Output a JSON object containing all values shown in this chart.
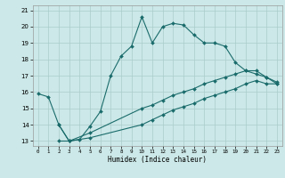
{
  "xlabel": "Humidex (Indice chaleur)",
  "bg_color": "#cce8e8",
  "grid_color": "#aacccc",
  "line_color": "#1a6b6b",
  "xlim": [
    -0.5,
    23.5
  ],
  "ylim": [
    12.7,
    21.3
  ],
  "xticks": [
    0,
    1,
    2,
    3,
    4,
    5,
    6,
    7,
    8,
    9,
    10,
    11,
    12,
    13,
    14,
    15,
    16,
    17,
    18,
    19,
    20,
    21,
    22,
    23
  ],
  "yticks": [
    13,
    14,
    15,
    16,
    17,
    18,
    19,
    20,
    21
  ],
  "line1_x": [
    0,
    1,
    2,
    3,
    4,
    5,
    6,
    7,
    8,
    9,
    10,
    11,
    12,
    13,
    14,
    15,
    16,
    17,
    18,
    19,
    20,
    21,
    22,
    23
  ],
  "line1_y": [
    15.9,
    15.7,
    14.0,
    13.0,
    13.1,
    13.9,
    14.8,
    17.0,
    18.2,
    18.8,
    20.6,
    19.0,
    20.0,
    20.2,
    20.1,
    19.5,
    19.0,
    19.0,
    18.8,
    17.8,
    17.3,
    17.1,
    16.9,
    16.5
  ],
  "line2_x": [
    2,
    3,
    5,
    10,
    11,
    12,
    13,
    14,
    15,
    16,
    17,
    18,
    19,
    20,
    21,
    22,
    23
  ],
  "line2_y": [
    14.0,
    13.0,
    13.5,
    15.0,
    15.2,
    15.5,
    15.8,
    16.0,
    16.2,
    16.5,
    16.7,
    16.9,
    17.1,
    17.3,
    17.3,
    16.9,
    16.6
  ],
  "line3_x": [
    2,
    3,
    5,
    10,
    11,
    12,
    13,
    14,
    15,
    16,
    17,
    18,
    19,
    20,
    21,
    22,
    23
  ],
  "line3_y": [
    13.0,
    13.0,
    13.2,
    14.0,
    14.3,
    14.6,
    14.9,
    15.1,
    15.3,
    15.6,
    15.8,
    16.0,
    16.2,
    16.5,
    16.7,
    16.5,
    16.5
  ]
}
